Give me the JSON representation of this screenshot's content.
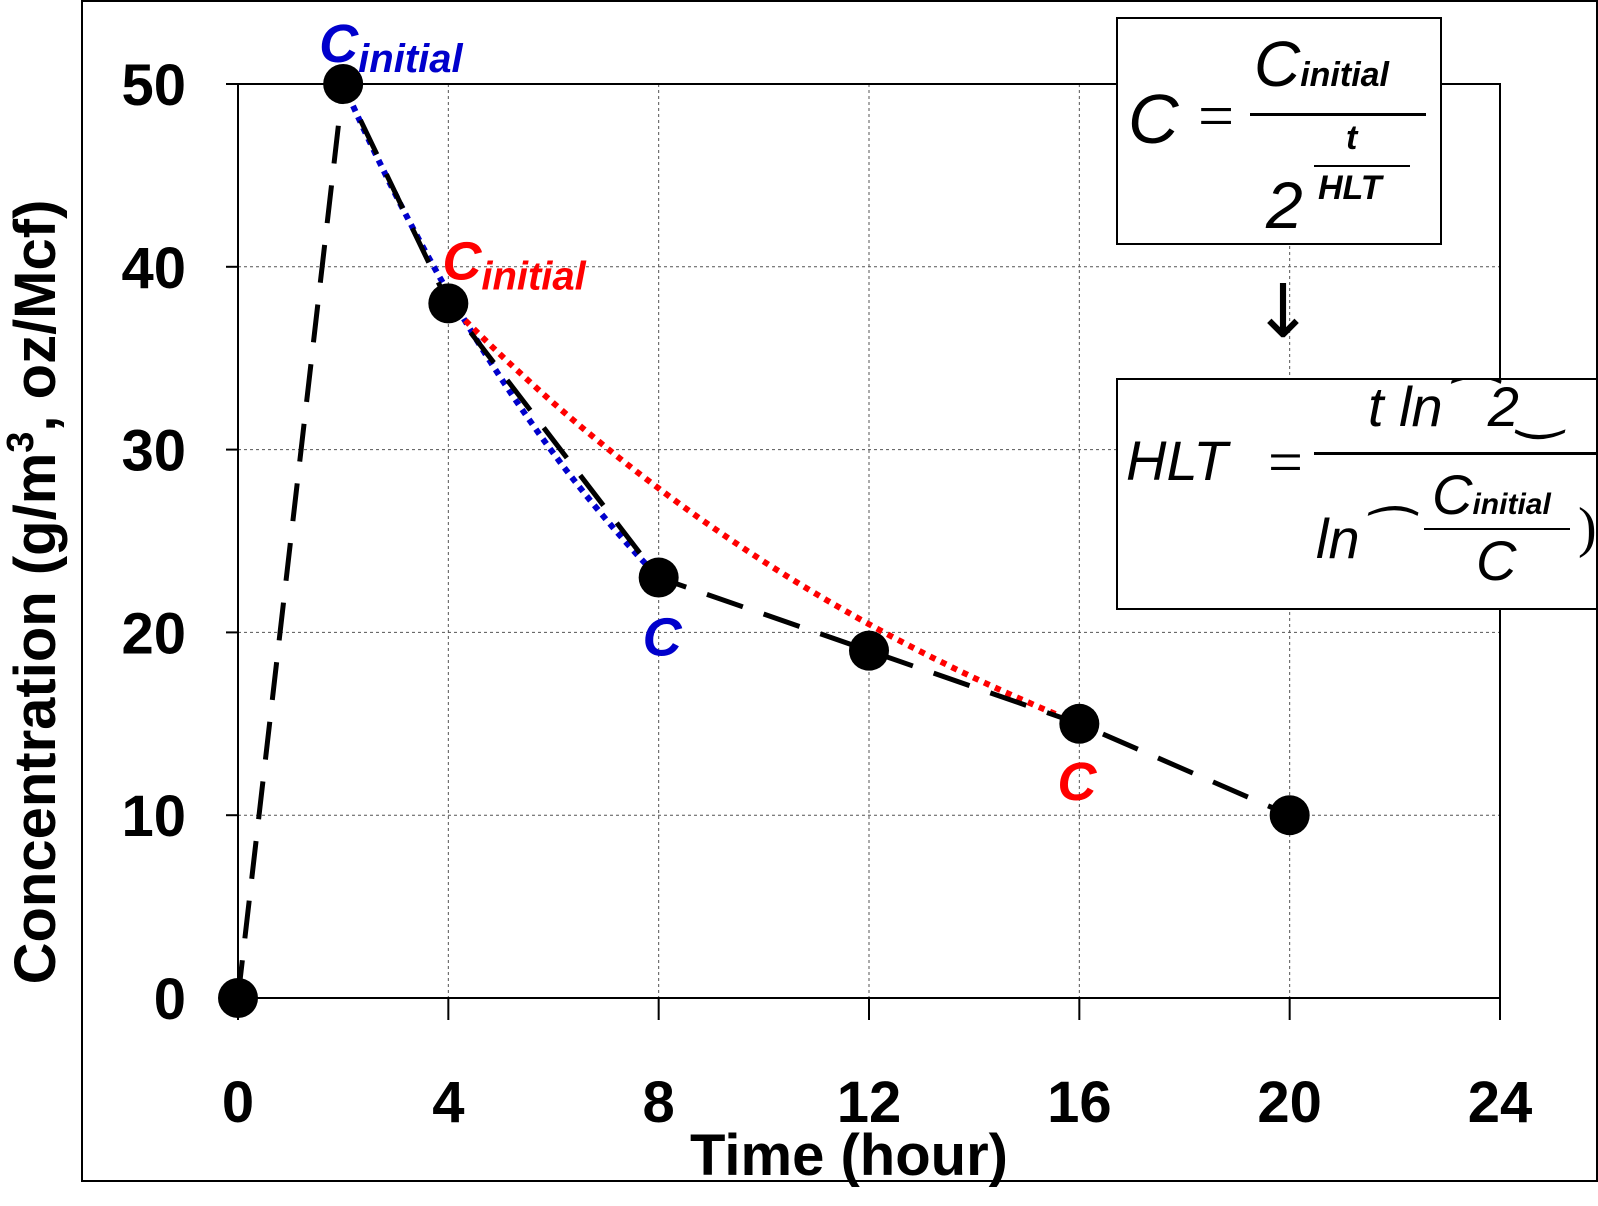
{
  "chart_data": {
    "type": "line",
    "xlabel": "Time (hour)",
    "ylabel_parts": [
      "Concentration (g/m",
      "3",
      ", oz/Mcf)"
    ],
    "xlim": [
      0,
      24
    ],
    "ylim": [
      0,
      50
    ],
    "xticks": [
      "0",
      "4",
      "8",
      "12",
      "16",
      "20",
      "24"
    ],
    "yticks": [
      "0",
      "10",
      "20",
      "30",
      "40",
      "50"
    ],
    "grid": true,
    "series": [
      {
        "style": "dashed",
        "color": "#000000",
        "x": [
          0,
          2,
          4,
          8,
          12,
          16,
          20
        ],
        "y": [
          0,
          50,
          38,
          23,
          19,
          15,
          10
        ]
      }
    ],
    "decay_curves": [
      {
        "color": "#0000cc",
        "x_start": 2,
        "y_start": 50,
        "x_end": 8,
        "y_end": 23,
        "style": "dotted"
      },
      {
        "color": "#ff0000",
        "x_start": 4,
        "y_start": 38,
        "x_end": 16,
        "y_end": 15,
        "style": "dotted"
      }
    ],
    "annotations": [
      {
        "main": "C",
        "sub": "initial",
        "color": "#0000cc"
      },
      {
        "main": "C",
        "sub": "initial",
        "color": "#ff0000"
      },
      {
        "main": "C",
        "sub": "",
        "color": "#0000cc"
      },
      {
        "main": "C",
        "sub": "",
        "color": "#ff0000"
      }
    ]
  },
  "formulas": {
    "f1_lhs": "C",
    "f1_eq": "=",
    "f1_num_main": "C",
    "f1_num_sub": "initial",
    "f1_exp_num": "t",
    "f1_base": "2",
    "f1_exp_den": "HLT",
    "arrow": "↓",
    "f2_lhs": "HLT",
    "f2_eq": "=",
    "f2_num": "t ln⁀2‿",
    "f2_den_ln": "ln⁀",
    "f2_den_num_main": "C",
    "f2_den_num_sub": "initial",
    "f2_den_den": "C",
    "f2_den_close": ")"
  }
}
